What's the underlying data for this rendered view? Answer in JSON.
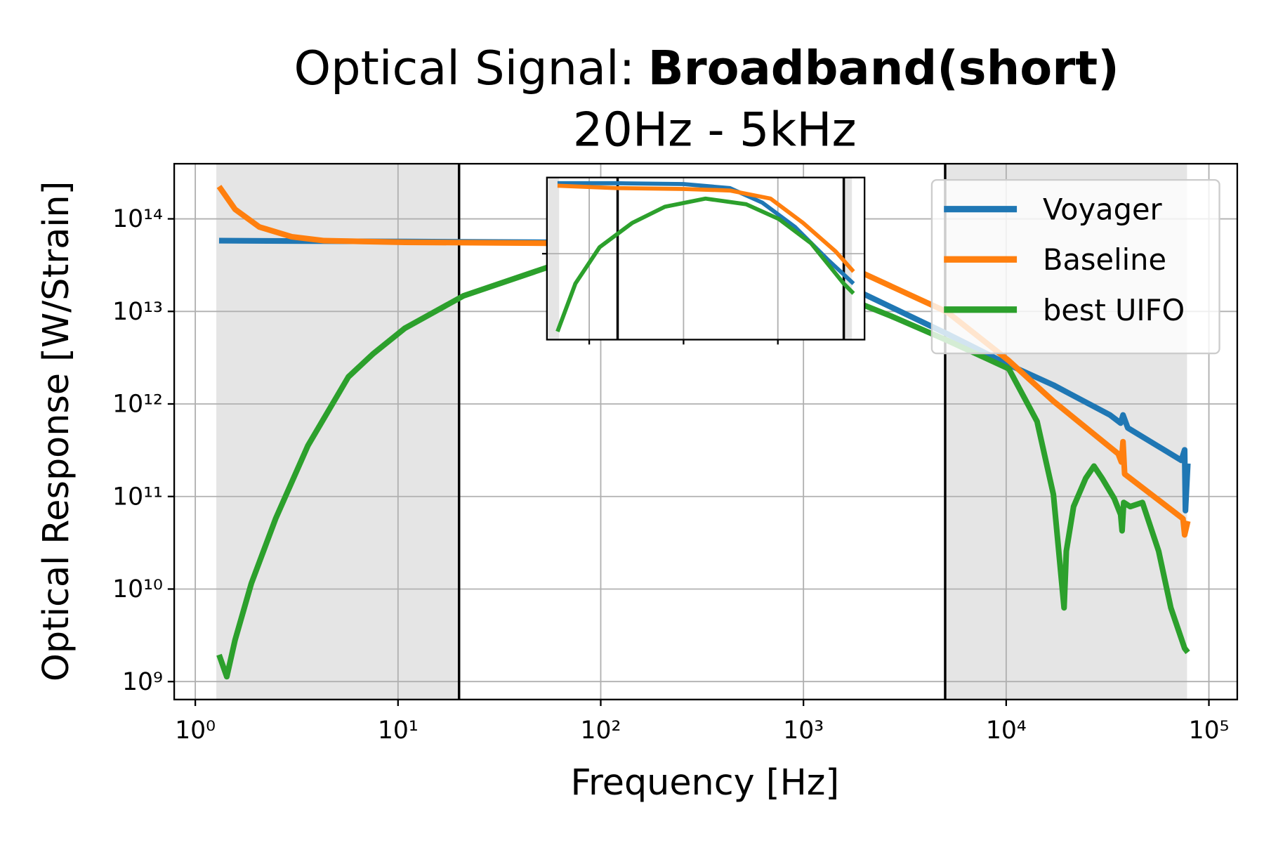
{
  "chart_data": [
    {
      "type": "line",
      "title": "Optical Signal:",
      "title_emphasis": "Broadband(short)",
      "subtitle": "20Hz - 5kHz",
      "xlabel": "Frequency [Hz]",
      "ylabel": "Optical Response [W/Strain]",
      "xscale": "log",
      "yscale": "log",
      "grid": true,
      "legend": "upper right",
      "xlim": [
        0.787,
        138000
      ],
      "ylim": [
        640000000,
        394000000000000
      ],
      "xticks": [
        {
          "value": 1,
          "label": "10⁰"
        },
        {
          "value": 10,
          "label": "10¹"
        },
        {
          "value": 100,
          "label": "10²"
        },
        {
          "value": 1000,
          "label": "10³"
        },
        {
          "value": 10000,
          "label": "10⁴"
        },
        {
          "value": 100000,
          "label": "10⁵"
        }
      ],
      "yticks": [
        {
          "value": 1000000000,
          "label": "10⁹"
        },
        {
          "value": 10000000000,
          "label": "10¹⁰"
        },
        {
          "value": 100000000000,
          "label": "10¹¹"
        },
        {
          "value": 1000000000000,
          "label": "10¹²"
        },
        {
          "value": 10000000000000,
          "label": "10¹³"
        },
        {
          "value": 100000000000000,
          "label": "10¹⁴"
        }
      ],
      "spans": [
        [
          1.27,
          20
        ],
        [
          5000,
          78000
        ]
      ],
      "span_color": "#e5e5e5",
      "vlines": [
        20,
        5000
      ],
      "series": [
        {
          "name": "Voyager",
          "color": "#1f77b4",
          "x": [
            1.31,
            10.8,
            54.3,
            298,
            1080,
            1880,
            5120,
            10300,
            17100,
            32500,
            36700,
            37700,
            39800,
            73100,
            75900,
            76600,
            78700
          ],
          "values": [
            58100000000000.0,
            56900000000000.0,
            55800000000000.0,
            54600000000000.0,
            49400000000000.0,
            16300000000000.0,
            5710000000000.0,
            2650000000000.0,
            1600000000000.0,
            760000000000.0,
            621000000000.0,
            760000000000.0,
            551000000000.0,
            246000000000.0,
            319000000000.0,
            70400000000.0,
            227000000000.0
          ]
        },
        {
          "name": "Baseline",
          "color": "#ff7f0e",
          "x": [
            1.31,
            1.57,
            2.07,
            2.99,
            4.32,
            10.8,
            54.3,
            298,
            1080,
            1880,
            5120,
            10300,
            17100,
            35700,
            37000,
            37700,
            38400,
            74500,
            75900,
            78700
          ],
          "values": [
            224000000000000.0,
            127000000000000.0,
            81700000000000.0,
            64100000000000.0,
            58100000000000.0,
            55800000000000.0,
            54600000000000.0,
            52500000000000.0,
            44700000000000.0,
            27000000000000.0,
            9840000000000.0,
            2940000000000.0,
            1070000000000.0,
            289000000000.0,
            236000000000.0,
            391000000000.0,
            175000000000.0,
            57500000000.0,
            38500000000.0,
            54200000000.0
          ]
        },
        {
          "name": "best UIFO",
          "color": "#2ca02c",
          "x": [
            1.31,
            1.43,
            1.57,
            1.89,
            2.49,
            3.59,
            5.69,
            7.5,
            10.8,
            21,
            54.3,
            119,
            298,
            1080,
            2710,
            5120,
            10300,
            14200,
            17100,
            19300,
            19800,
            21500,
            24700,
            27100,
            29700,
            34100,
            36700,
            37300,
            38000,
            40900,
            47000,
            56500,
            64900,
            75900,
            78700
          ],
          "values": [
            1950000000.0,
            1130000000.0,
            2800000000.0,
            11500000000.0,
            57500000000.0,
            353000000000.0,
            1960000000000.0,
            3450000000000.0,
            6570000000000.0,
            14700000000000.0,
            29800000000000.0,
            44700000000000.0,
            36500000000000.0,
            19900000000000.0,
            8890000000000.0,
            4860000000000.0,
            2400000000000.0,
            647000000000.0,
            105000000000.0,
            6270000000.0,
            25700000000.0,
            77800000000.0,
            158000000000.0,
            213000000000.0,
            158000000000.0,
            95300000000.0,
            63700000000.0,
            42600000000.0,
            86100000000.0,
            77800000000.0,
            86100000000.0,
            25700000000.0,
            6270000000.0,
            2290000000.0,
            2070000000.0
          ]
        }
      ]
    },
    {
      "type": "line",
      "xscale": "log",
      "yscale": "log",
      "grid": true,
      "xlim": [
        3.56,
        8300
      ],
      "ylim": [
        1150000000000,
        68000000000000
      ],
      "xticks": [
        10,
        100,
        1000
      ],
      "yticks": [
        10000000000000
      ],
      "spans": [
        [
          1.27,
          4.8
        ],
        [
          5000,
          6100
        ]
      ],
      "span_color": "#e5e5e5",
      "vlines": [
        20,
        5000
      ],
      "series": [
        {
          "color": "#1f77b4",
          "x": [
            4.61,
            19.2,
            100,
            310,
            686,
            1520,
            3360,
            6340
          ],
          "values": [
            58900000000000.0,
            58900000000000.0,
            57700000000000.0,
            52100000000000.0,
            36100000000000.0,
            19600000000000.0,
            8670000000000.0,
            4710000000000.0
          ]
        },
        {
          "color": "#ff7f0e",
          "x": [
            4.61,
            19.2,
            100,
            310,
            836,
            1850,
            4090,
            6340
          ],
          "values": [
            55300000000000.0,
            52100000000000.0,
            51000000000000.0,
            49000000000000.0,
            40000000000000.0,
            21700000000000.0,
            10600000000000.0,
            6380000000000.0
          ]
        },
        {
          "color": "#2ca02c",
          "x": [
            4.61,
            7.13,
            12.9,
            28.6,
            63.4,
            171,
            461,
            1020,
            2250,
            4990,
            6340
          ],
          "values": [
            1410000000000.0,
            4710000000000.0,
            11800000000000.0,
            21700000000000.0,
            32600000000000.0,
            40000000000000.0,
            34700000000000.0,
            24000000000000.0,
            13000000000000.0,
            4710000000000.0,
            3680000000000.0
          ]
        }
      ]
    }
  ]
}
